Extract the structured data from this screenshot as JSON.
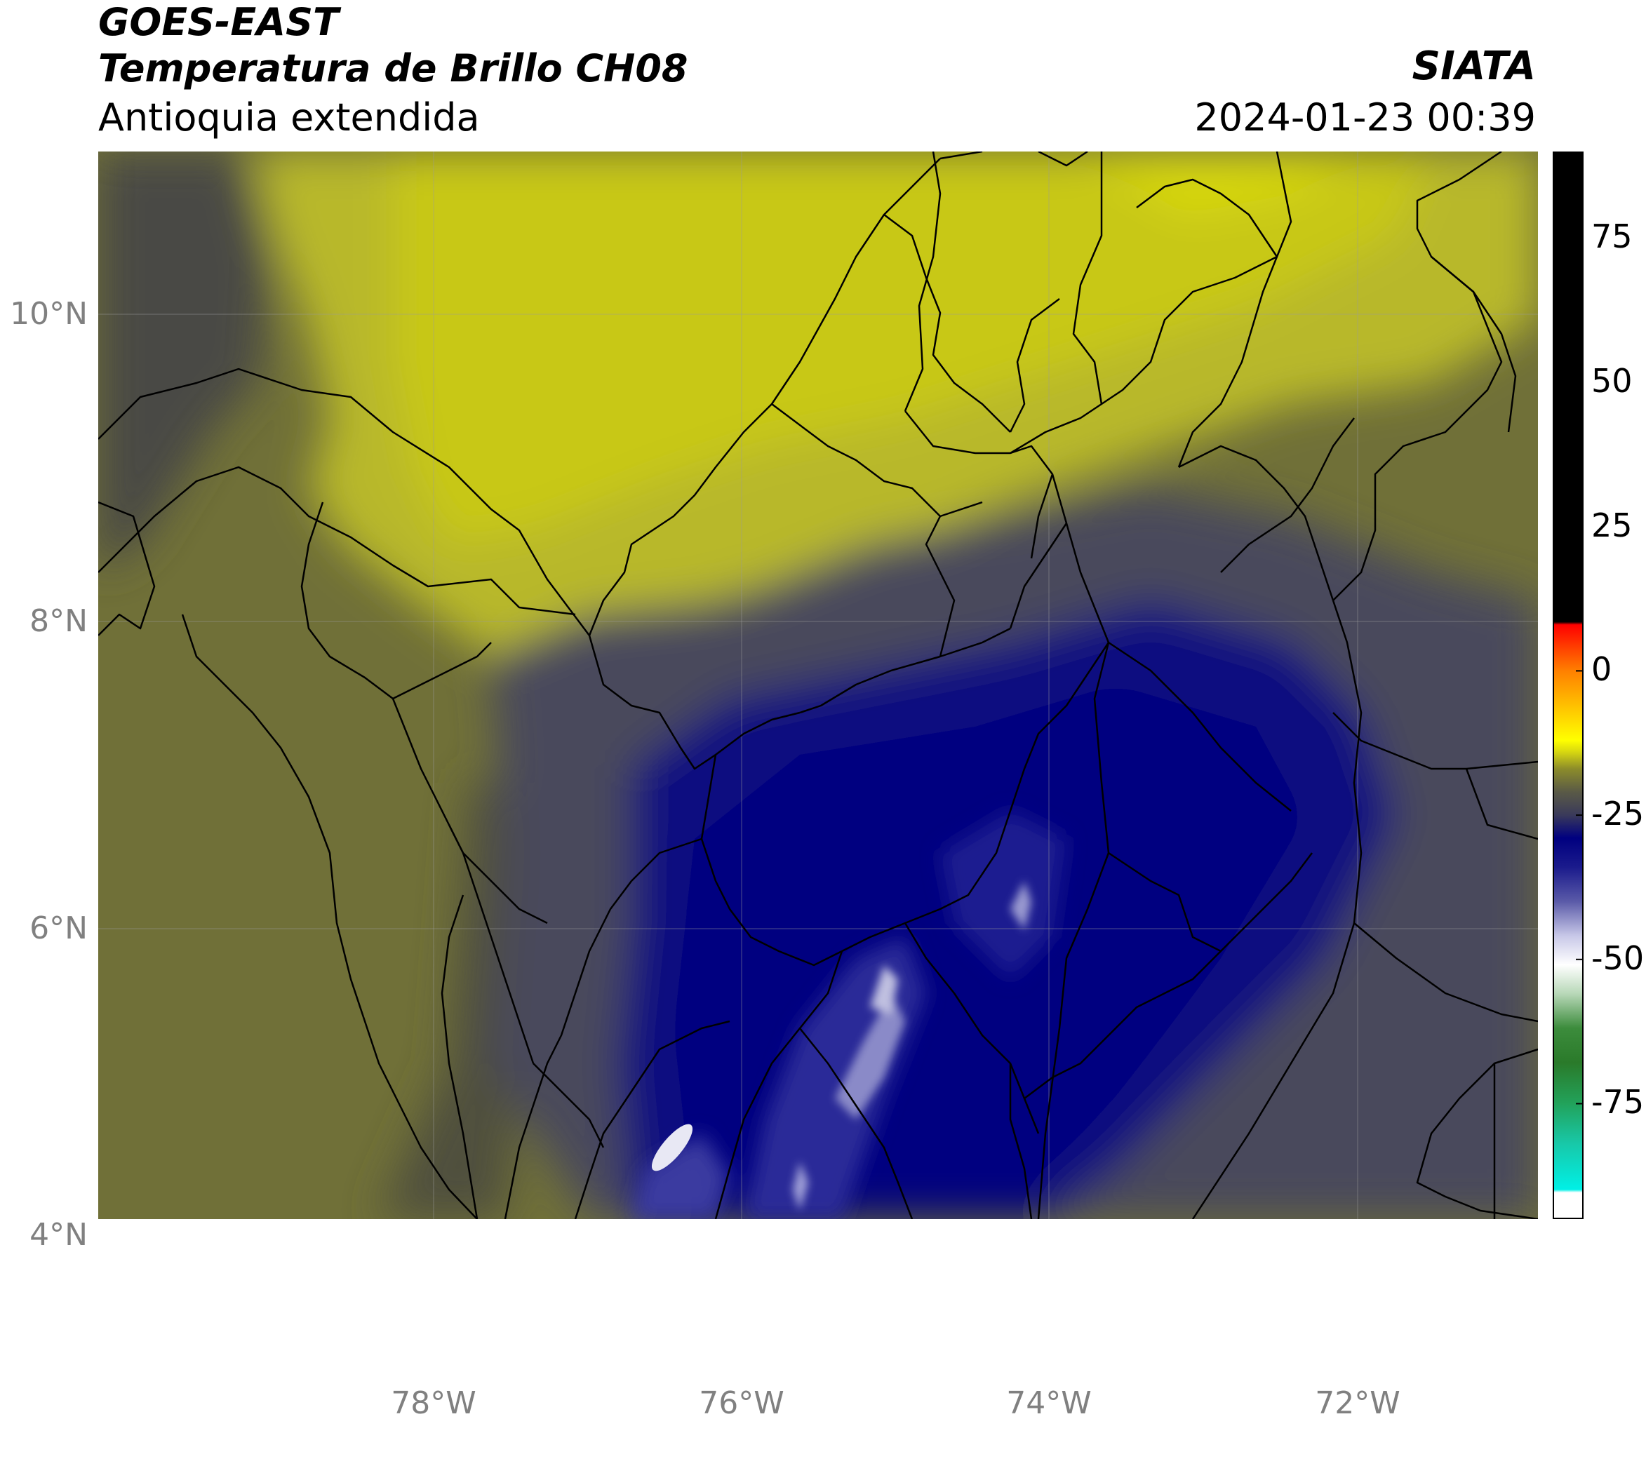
{
  "header": {
    "satellite": "GOES-EAST",
    "product": "Temperatura de Brillo CH08",
    "region": "Antioquia extendida",
    "brand": "SIATA",
    "datetime": "2024-01-23 00:39"
  },
  "map": {
    "lat_labels": [
      {
        "value": 10,
        "text": "10°N"
      },
      {
        "value": 8,
        "text": "8°N"
      },
      {
        "value": 6,
        "text": "6°N"
      },
      {
        "value": 4,
        "text": "4°N"
      }
    ],
    "lon_labels": [
      {
        "value": -78,
        "text": "78°W"
      },
      {
        "value": -76,
        "text": "76°W"
      },
      {
        "value": -74,
        "text": "74°W"
      },
      {
        "value": -72,
        "text": "72°W"
      }
    ],
    "lon_range": [
      -80.2,
      -70.8
    ],
    "lat_range": [
      2.6,
      11.0
    ]
  },
  "colorbar": {
    "range": [
      -95,
      90
    ],
    "ticks": [
      {
        "value": 75,
        "text": "75"
      },
      {
        "value": 50,
        "text": "50"
      },
      {
        "value": 25,
        "text": "25"
      },
      {
        "value": 0,
        "text": "0"
      },
      {
        "value": -25,
        "text": "-25"
      },
      {
        "value": -50,
        "text": "-50"
      },
      {
        "value": -75,
        "text": "-75"
      }
    ],
    "stops": [
      {
        "value": -95,
        "color": "#ffffff"
      },
      {
        "value": -90.5,
        "color": "#ffffff"
      },
      {
        "value": -90,
        "color": "#00f0e6"
      },
      {
        "value": -82,
        "color": "#18c8a8"
      },
      {
        "value": -75,
        "color": "#22a25a"
      },
      {
        "value": -68,
        "color": "#2a7a2a"
      },
      {
        "value": -62,
        "color": "#3c8c3c"
      },
      {
        "value": -56,
        "color": "#b8d8b8"
      },
      {
        "value": -51,
        "color": "#ffffff"
      },
      {
        "value": -46,
        "color": "#c8c8e8"
      },
      {
        "value": -40,
        "color": "#5a5aa8"
      },
      {
        "value": -34,
        "color": "#1a1a8c"
      },
      {
        "value": -29,
        "color": "#000080"
      },
      {
        "value": -25,
        "color": "#3a3a5a"
      },
      {
        "value": -21,
        "color": "#5a5a46"
      },
      {
        "value": -17,
        "color": "#8c8c2a"
      },
      {
        "value": -14,
        "color": "#d8d810"
      },
      {
        "value": -12,
        "color": "#ffff00"
      },
      {
        "value": -6,
        "color": "#ffc000"
      },
      {
        "value": 0,
        "color": "#ff8000"
      },
      {
        "value": 6,
        "color": "#ff2000"
      },
      {
        "value": 8,
        "color": "#ff0000"
      },
      {
        "value": 8.5,
        "color": "#000000"
      },
      {
        "value": 90,
        "color": "#000000"
      }
    ]
  }
}
